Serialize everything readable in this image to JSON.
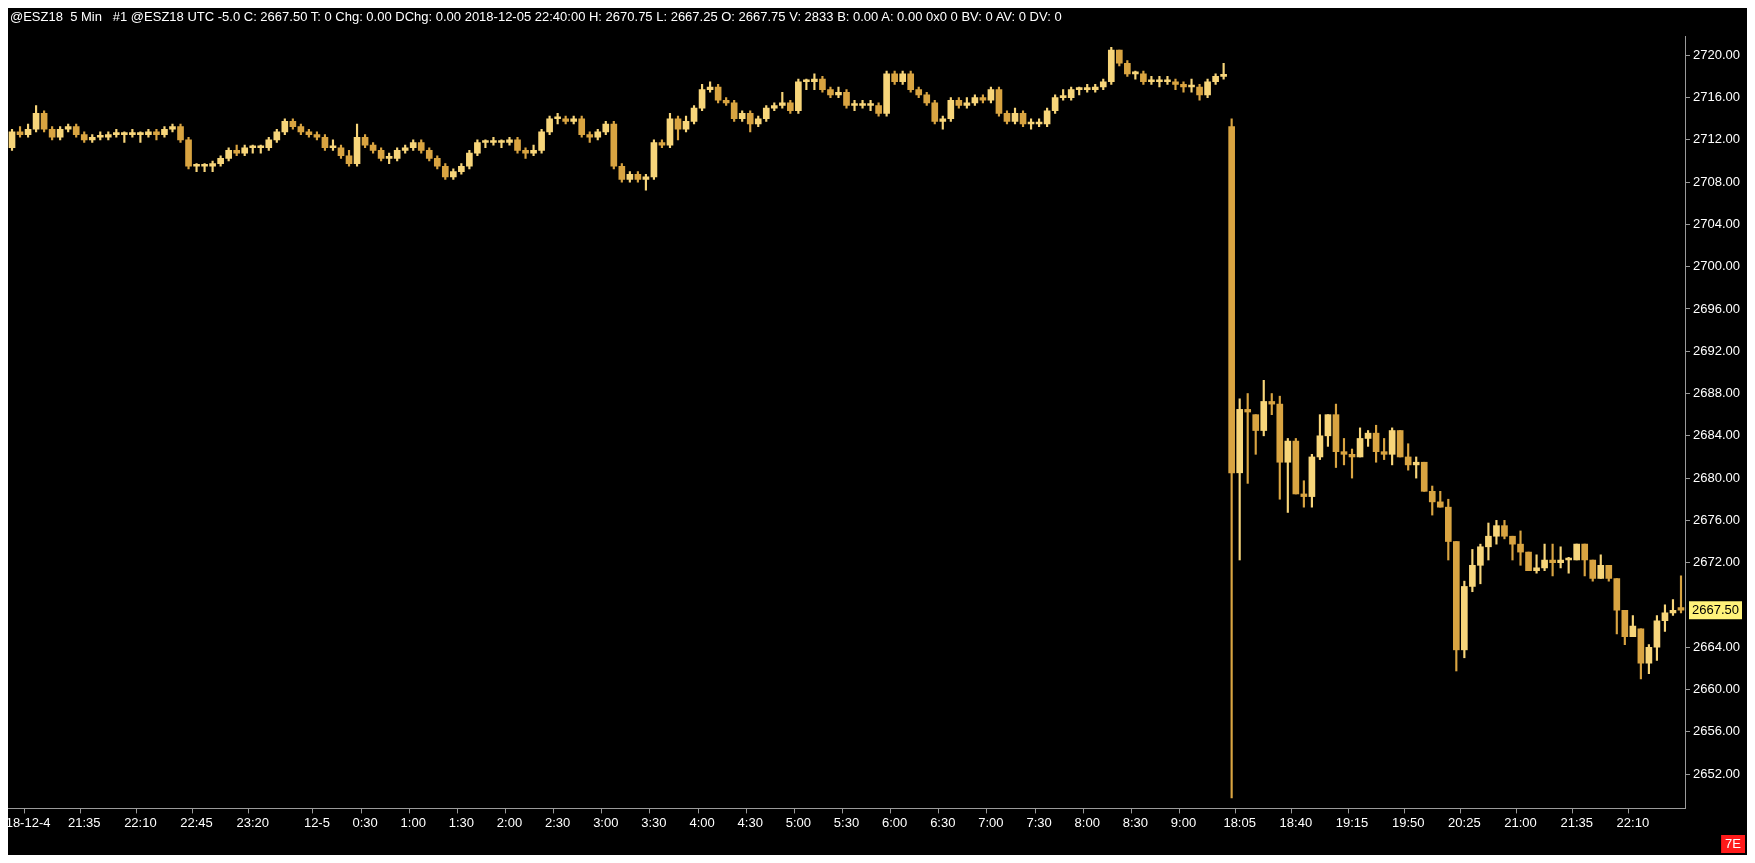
{
  "chart_data": {
    "type": "candlestick",
    "title": "@ESZ18  5 Min   #1 @ESZ18 UTC -5.0 C: 2667.50 T: 0 Chg: 0.00 DChg: 0.00 2018-12-05 22:40:00 H: 2670.75 L: 2667.25 O: 2667.75 V: 2833 B: 0.00 A: 0.00 0x0 0 BV: 0 AV: 0 DV: 0",
    "colors": [
      "#f7d57a",
      "#d9a441",
      "#f7d57a",
      "#f7d57a",
      "#d9a441",
      "#d9a441",
      "#f7d57a",
      "#f7d57a",
      "#d9a441",
      "#d9a441",
      "#f7d57a",
      "#f7d57a",
      "#f7d57a",
      "#f7d57a",
      "#f7d57a",
      "#f7d57a",
      "#f7d57a",
      "#f7d57a",
      "#d9a441",
      "#f7d57a",
      "#f7d57a",
      "#d9a441",
      "#d9a441",
      "#f7d57a",
      "#f7d57a",
      "#f7d57a",
      "#f7d57a",
      "#f7d57a",
      "#d9a441",
      "#f7d57a",
      "#f7d57a",
      "#f7d57a",
      "#f7d57a",
      "#f7d57a",
      "#f7d57a",
      "#d9a441",
      "#d9a441",
      "#d9a441",
      "#d9a441",
      "#d9a441",
      "#f7d57a",
      "#d9a441",
      "#d9a441",
      "#f7d57a",
      "#d9a441",
      "#d9a441",
      "#d9a441",
      "#f7d57a",
      "#f7d57a",
      "#f7d57a",
      "#f7d57a",
      "#d9a441",
      "#d9a441",
      "#d9a441",
      "#d9a441",
      "#f7d57a",
      "#f7d57a",
      "#f7d57a",
      "#f7d57a",
      "#f7d57a",
      "#f7d57a",
      "#f7d57a",
      "#f7d57a",
      "#d9a441",
      "#d9a441",
      "#f7d57a",
      "#f7d57a",
      "#f7d57a",
      "#f7d57a",
      "#d9a441",
      "#f7d57a",
      "#d9a441",
      "#d9a441",
      "#f7d57a",
      "#f7d57a",
      "#d9a441",
      "#d9a441",
      "#f7d57a",
      "#d9a441",
      "#f7d57a",
      "#f7d57a",
      "#d9a441",
      "#f7d57a",
      "#d9a441",
      "#f7d57a",
      "#f7d57a",
      "#f7d57a",
      "#f7d57a",
      "#d9a441",
      "#d9a441",
      "#d9a441",
      "#f7d57a",
      "#d9a441",
      "#f7d57a",
      "#f7d57a",
      "#f7d57a",
      "#f7d57a",
      "#d9a441",
      "#f7d57a",
      "#f7d57a",
      "#f7d57a",
      "#d9a441",
      "#d9a441",
      "#f7d57a",
      "#d9a441",
      "#f7d57a",
      "#f7d57a",
      "#f7d57a",
      "#d9a441",
      "#f7d57a",
      "#d9a441",
      "#f7d57a",
      "#d9a441",
      "#d9a441",
      "#d9a441",
      "#d9a441",
      "#f7d57a",
      "#f7d57a",
      "#d9a441",
      "#f7d57a",
      "#f7d57a",
      "#d9a441",
      "#f7d57a",
      "#d9a441",
      "#d9a441",
      "#f7d57a",
      "#d9a441",
      "#f7d57a",
      "#f7d57a",
      "#f7d57a",
      "#f7d57a",
      "#f7d57a",
      "#f7d57a",
      "#f7d57a",
      "#f7d57a",
      "#f7d57a",
      "#f7d57a",
      "#f7d57a",
      "#d9a441",
      "#d9a441",
      "#f7d57a",
      "#d9a441",
      "#f7d57a",
      "#f7d57a",
      "#f7d57a",
      "#d9a441",
      "#d9a441",
      "#f7d57a",
      "#d9a441",
      "#f7d57a",
      "#f7d57a",
      "#f7d57a",
      "#d9a441",
      "#f7d57a",
      "#d9a441",
      "#d9a441",
      "#f7d57a",
      "#d9a441",
      "#d9a441",
      "#f7d57a",
      "#d9a441",
      "#d9a441",
      "#f7d57a",
      "#f7d57a",
      "#f7d57a",
      "#d9a441",
      "#d9a441",
      "#d9a441",
      "#f7d57a",
      "#f7d57a",
      "#d9a441",
      "#d9a441",
      "#f7d57a",
      "#d9a441",
      "#d9a441",
      "#f7d57a",
      "#d9a441",
      "#d9a441",
      "#d9a441",
      "#d9a441",
      "#d9a441",
      "#f7d57a",
      "#f7d57a",
      "#f7d57a",
      "#f7d57a",
      "#f7d57a",
      "#d9a441",
      "#d9a441",
      "#d9a441",
      "#d9a441",
      "#f7d57a",
      "#f7d57a",
      "#d9a441",
      "#f7d57a",
      "#f7d57a",
      "#f7d57a",
      "#d9a441",
      "#d9a441",
      "#f7d57a",
      "#d9a441",
      "#d9a441",
      "#d9a441",
      "#f7d57a",
      "#d9a441",
      "#f7d57a",
      "#f7d57a",
      "#f7d57a",
      "#f7d57a",
      "#d9a441"
    ],
    "categories": [
      null,
      null,
      "18-12-4",
      null,
      null,
      null,
      null,
      null,
      null,
      "21:35",
      null,
      null,
      null,
      null,
      null,
      null,
      "22:10",
      null,
      null,
      null,
      null,
      null,
      null,
      "22:45",
      null,
      null,
      null,
      null,
      null,
      null,
      "23:20",
      null,
      null,
      null,
      null,
      null,
      null,
      null,
      "12-5",
      null,
      null,
      null,
      null,
      null,
      "0:30",
      null,
      null,
      null,
      null,
      null,
      "1:00",
      null,
      null,
      null,
      null,
      null,
      "1:30",
      null,
      null,
      null,
      null,
      null,
      "2:00",
      null,
      null,
      null,
      null,
      null,
      "2:30",
      null,
      null,
      null,
      null,
      null,
      "3:00",
      null,
      null,
      null,
      null,
      null,
      "3:30",
      null,
      null,
      null,
      null,
      null,
      "4:00",
      null,
      null,
      null,
      null,
      null,
      "4:30",
      null,
      null,
      null,
      null,
      null,
      "5:00",
      null,
      null,
      null,
      null,
      null,
      "5:30",
      null,
      null,
      null,
      null,
      null,
      "6:00",
      null,
      null,
      null,
      null,
      null,
      "6:30",
      null,
      null,
      null,
      null,
      null,
      "7:00",
      null,
      null,
      null,
      null,
      null,
      "7:30",
      null,
      null,
      null,
      null,
      null,
      "8:00",
      null,
      null,
      null,
      null,
      null,
      "8:30",
      null,
      null,
      null,
      null,
      null,
      "9:00",
      null,
      null,
      null,
      null,
      null,
      null,
      "18:05",
      null,
      null,
      null,
      null,
      null,
      null,
      "18:40",
      null,
      null,
      null,
      null,
      null,
      null,
      "19:15",
      null,
      null,
      null,
      null,
      null,
      null,
      "19:50",
      null,
      null,
      null,
      null,
      null,
      null,
      "20:25",
      null,
      null,
      null,
      null,
      null,
      null,
      "21:00",
      null,
      null,
      null,
      null,
      null,
      null,
      "21:35",
      null,
      null,
      null,
      null,
      null,
      null,
      "22:10",
      null,
      null,
      null,
      null,
      null,
      null
    ],
    "ohlc": [
      [
        2711.25,
        2713,
        2711,
        2712.75
      ],
      [
        2712.75,
        2713.25,
        2712.25,
        2712.5
      ],
      [
        2712.5,
        2713.5,
        2712.25,
        2713
      ],
      [
        2713,
        2715.25,
        2712.75,
        2714.5
      ],
      [
        2714.5,
        2714.75,
        2712.75,
        2713
      ],
      [
        2713,
        2713.25,
        2712,
        2712.25
      ],
      [
        2712.25,
        2713.25,
        2712,
        2713
      ],
      [
        2713,
        2713.5,
        2712.75,
        2713.25
      ],
      [
        2713.25,
        2713.5,
        2712.25,
        2712.5
      ],
      [
        2712.5,
        2712.75,
        2711.75,
        2712
      ],
      [
        2712,
        2712.5,
        2711.75,
        2712.25
      ],
      [
        2712.25,
        2712.75,
        2712,
        2712.25
      ],
      [
        2712.25,
        2712.75,
        2712,
        2712.5
      ],
      [
        2712.5,
        2713,
        2712.25,
        2712.5
      ],
      [
        2712.5,
        2712.75,
        2711.75,
        2712.5
      ],
      [
        2712.5,
        2713,
        2712.25,
        2712.5
      ],
      [
        2712.5,
        2712.75,
        2711.75,
        2712.5
      ],
      [
        2712.5,
        2713,
        2712.25,
        2712.75
      ],
      [
        2712.75,
        2713,
        2712,
        2712.5
      ],
      [
        2712.5,
        2713.25,
        2712.25,
        2713
      ],
      [
        2713,
        2713.5,
        2712.75,
        2713.25
      ],
      [
        2713.25,
        2713.5,
        2711.75,
        2712
      ],
      [
        2712,
        2712.25,
        2709.25,
        2709.5
      ],
      [
        2709.5,
        2709.75,
        2709,
        2709.5
      ],
      [
        2709.5,
        2709.75,
        2709,
        2709.5
      ],
      [
        2709.5,
        2710,
        2709,
        2709.75
      ],
      [
        2709.75,
        2710.5,
        2709.5,
        2710.25
      ],
      [
        2710.25,
        2711.25,
        2710,
        2711
      ],
      [
        2711,
        2711.5,
        2710.5,
        2710.75
      ],
      [
        2710.75,
        2711.5,
        2710.5,
        2711.25
      ],
      [
        2711.25,
        2711.5,
        2710.75,
        2711.25
      ],
      [
        2711.25,
        2711.5,
        2710.75,
        2711.25
      ],
      [
        2711.25,
        2712.25,
        2711,
        2712
      ],
      [
        2712,
        2713,
        2711.75,
        2712.75
      ],
      [
        2712.75,
        2714,
        2712.5,
        2713.75
      ],
      [
        2713.75,
        2714,
        2713,
        2713.25
      ],
      [
        2713.25,
        2713.5,
        2712.5,
        2712.75
      ],
      [
        2712.75,
        2713,
        2712.25,
        2712.5
      ],
      [
        2712.5,
        2712.75,
        2712,
        2712.25
      ],
      [
        2712.25,
        2712.5,
        2711,
        2711.25
      ],
      [
        2711.25,
        2712,
        2711,
        2711.25
      ],
      [
        2711.25,
        2711.5,
        2710.25,
        2710.5
      ],
      [
        2710.5,
        2711,
        2709.5,
        2709.75
      ],
      [
        2709.75,
        2713.5,
        2709.5,
        2712.25
      ],
      [
        2712.25,
        2712.5,
        2711.25,
        2711.5
      ],
      [
        2711.5,
        2711.75,
        2710.75,
        2711
      ],
      [
        2711,
        2711.25,
        2710,
        2710.25
      ],
      [
        2710.25,
        2710.75,
        2709.75,
        2710.25
      ],
      [
        2710.25,
        2711.25,
        2710,
        2711
      ],
      [
        2711,
        2711.5,
        2710.75,
        2711.25
      ],
      [
        2711.25,
        2712,
        2711,
        2711.75
      ],
      [
        2711.75,
        2712,
        2710.75,
        2711
      ],
      [
        2711,
        2711.25,
        2710,
        2710.25
      ],
      [
        2710.25,
        2710.5,
        2709.25,
        2709.5
      ],
      [
        2709.5,
        2709.75,
        2708.25,
        2708.5
      ],
      [
        2708.5,
        2709.25,
        2708.25,
        2709
      ],
      [
        2709,
        2709.75,
        2708.75,
        2709.5
      ],
      [
        2709.5,
        2711,
        2709.25,
        2710.75
      ],
      [
        2710.75,
        2712,
        2710.5,
        2711.75
      ],
      [
        2711.75,
        2712,
        2711.25,
        2711.75
      ],
      [
        2711.75,
        2712.25,
        2711.5,
        2711.75
      ],
      [
        2711.75,
        2712,
        2711.25,
        2711.75
      ],
      [
        2711.75,
        2712.25,
        2711.5,
        2712
      ],
      [
        2712,
        2712.25,
        2710.75,
        2711
      ],
      [
        2711,
        2711.25,
        2710.25,
        2710.75
      ],
      [
        2710.75,
        2711.5,
        2710.5,
        2711
      ],
      [
        2711,
        2713,
        2710.75,
        2712.75
      ],
      [
        2712.75,
        2714.25,
        2712.5,
        2714
      ],
      [
        2714,
        2714.5,
        2713.5,
        2714
      ],
      [
        2714,
        2714.25,
        2713.5,
        2713.75
      ],
      [
        2713.75,
        2714.25,
        2713.5,
        2714
      ],
      [
        2714,
        2714.25,
        2712.25,
        2712.5
      ],
      [
        2712.5,
        2712.75,
        2711.75,
        2712.25
      ],
      [
        2712.25,
        2713,
        2712,
        2712.75
      ],
      [
        2712.75,
        2713.75,
        2712.5,
        2713.5
      ],
      [
        2713.5,
        2713.75,
        2709.25,
        2709.5
      ],
      [
        2709.5,
        2709.75,
        2708,
        2708.25
      ],
      [
        2708.25,
        2709,
        2708,
        2708.75
      ],
      [
        2708.75,
        2709,
        2708,
        2708.25
      ],
      [
        2708.25,
        2708.75,
        2707.25,
        2708.5
      ],
      [
        2708.5,
        2712,
        2708.25,
        2711.75
      ],
      [
        2711.75,
        2712,
        2711.25,
        2711.5
      ],
      [
        2711.5,
        2714.5,
        2711.25,
        2714
      ],
      [
        2714,
        2714.25,
        2712,
        2713
      ],
      [
        2713,
        2714.25,
        2712.75,
        2713.75
      ],
      [
        2713.75,
        2715.25,
        2713.5,
        2715
      ],
      [
        2715,
        2717.25,
        2714.75,
        2716.75
      ],
      [
        2716.75,
        2717.5,
        2716.5,
        2717
      ],
      [
        2717,
        2717.25,
        2715.5,
        2715.75
      ],
      [
        2715.75,
        2716,
        2715.25,
        2715.5
      ],
      [
        2715.5,
        2715.75,
        2713.75,
        2714
      ],
      [
        2714,
        2714.75,
        2713.75,
        2714.5
      ],
      [
        2714.5,
        2714.75,
        2712.75,
        2713.5
      ],
      [
        2713.5,
        2714.25,
        2713.25,
        2714
      ],
      [
        2714,
        2715.25,
        2713.75,
        2715
      ],
      [
        2715,
        2715.5,
        2714.75,
        2715.25
      ],
      [
        2715.25,
        2716.5,
        2715,
        2715.5
      ],
      [
        2715.5,
        2715.75,
        2714.5,
        2714.75
      ],
      [
        2714.75,
        2717.75,
        2714.5,
        2717.5
      ],
      [
        2717.5,
        2717.75,
        2716.75,
        2717.5
      ],
      [
        2717.5,
        2718.25,
        2716.75,
        2717.75
      ],
      [
        2717.75,
        2718,
        2716.5,
        2716.75
      ],
      [
        2716.75,
        2717,
        2716,
        2716.25
      ],
      [
        2716.25,
        2717,
        2716,
        2716.5
      ],
      [
        2716.5,
        2716.75,
        2715,
        2715.25
      ],
      [
        2715.25,
        2715.75,
        2714.75,
        2715.25
      ],
      [
        2715.25,
        2715.75,
        2715,
        2715.25
      ],
      [
        2715.25,
        2715.75,
        2714.75,
        2715.25
      ],
      [
        2715.25,
        2715.5,
        2714.25,
        2714.5
      ],
      [
        2714.5,
        2718.5,
        2714.25,
        2718.25
      ],
      [
        2718.25,
        2718.5,
        2717.25,
        2717.5
      ],
      [
        2717.5,
        2718.5,
        2717.25,
        2718.25
      ],
      [
        2718.25,
        2718.5,
        2716.5,
        2716.75
      ],
      [
        2716.75,
        2717,
        2716,
        2716.25
      ],
      [
        2716.25,
        2716.5,
        2715.25,
        2715.5
      ],
      [
        2715.5,
        2715.75,
        2713.5,
        2713.75
      ],
      [
        2713.75,
        2714.25,
        2713,
        2714
      ],
      [
        2714,
        2716,
        2713.75,
        2715.75
      ],
      [
        2715.75,
        2716,
        2715,
        2715.25
      ],
      [
        2715.25,
        2716,
        2715,
        2715.5
      ],
      [
        2715.5,
        2716.25,
        2715.25,
        2716
      ],
      [
        2716,
        2716.25,
        2715.5,
        2715.75
      ],
      [
        2715.75,
        2717,
        2715.5,
        2716.75
      ],
      [
        2716.75,
        2717,
        2714.25,
        2714.5
      ],
      [
        2714.5,
        2714.75,
        2713.5,
        2713.75
      ],
      [
        2713.75,
        2715,
        2713.5,
        2714.5
      ],
      [
        2714.5,
        2714.75,
        2713.25,
        2713.5
      ],
      [
        2713.5,
        2714,
        2713,
        2713.5
      ],
      [
        2713.5,
        2714,
        2713.25,
        2713.5
      ],
      [
        2713.5,
        2715,
        2713.25,
        2714.75
      ],
      [
        2714.75,
        2716.25,
        2714.5,
        2716
      ],
      [
        2716,
        2716.75,
        2715.75,
        2716
      ],
      [
        2716,
        2717,
        2715.75,
        2716.75
      ],
      [
        2716.75,
        2717,
        2716.25,
        2716.75
      ],
      [
        2716.75,
        2717.25,
        2716.5,
        2716.75
      ],
      [
        2716.75,
        2717.25,
        2716.5,
        2717
      ],
      [
        2717,
        2717.75,
        2716.75,
        2717.5
      ],
      [
        2717.5,
        2720.75,
        2717.25,
        2720.5
      ],
      [
        2720.5,
        2720.5,
        2719,
        2719.25
      ],
      [
        2719.25,
        2719.5,
        2718,
        2718.25
      ],
      [
        2718.25,
        2718.5,
        2717.75,
        2718.25
      ],
      [
        2718.25,
        2718.5,
        2717.25,
        2717.5
      ],
      [
        2717.5,
        2718,
        2717.25,
        2717.5
      ],
      [
        2717.5,
        2718,
        2717,
        2717.5
      ],
      [
        2717.5,
        2718,
        2717.25,
        2717.5
      ],
      [
        2717.5,
        2717.75,
        2716.75,
        2717.25
      ],
      [
        2717.25,
        2717.5,
        2716.5,
        2717
      ],
      [
        2717,
        2717.75,
        2716.5,
        2717
      ],
      [
        2717,
        2717.25,
        2715.75,
        2716.25
      ],
      [
        2716.25,
        2717.75,
        2716,
        2717.5
      ],
      [
        2717.5,
        2718.25,
        2717.25,
        2718
      ],
      [
        2718,
        2719.25,
        2717.75,
        2718
      ],
      [
        2713.25,
        2714,
        2649.75,
        2680.5
      ],
      [
        2680.5,
        2687.5,
        2672.25,
        2686.5
      ],
      [
        2686.5,
        2688,
        2679.5,
        2686.25
      ],
      [
        2686,
        2686,
        2682.25,
        2684.5
      ],
      [
        2684.5,
        2689.25,
        2684,
        2687.25
      ],
      [
        2687.25,
        2688,
        2686,
        2687
      ],
      [
        2687,
        2687.75,
        2678,
        2681.5
      ],
      [
        2681.5,
        2683.75,
        2676.75,
        2683.5
      ],
      [
        2683.5,
        2683.75,
        2678.5,
        2678.5
      ],
      [
        2678.5,
        2679.75,
        2677.25,
        2678.25
      ],
      [
        2678.25,
        2682.25,
        2677.25,
        2682
      ],
      [
        2682,
        2686,
        2681.75,
        2684
      ],
      [
        2684,
        2686,
        2683,
        2686
      ],
      [
        2686,
        2687,
        2681,
        2682.5
      ],
      [
        2682.5,
        2683.75,
        2681.25,
        2682.25
      ],
      [
        2682.25,
        2682.75,
        2680,
        2682
      ],
      [
        2682,
        2684.75,
        2682,
        2683.75
      ],
      [
        2683.75,
        2684.5,
        2683,
        2684.25
      ],
      [
        2684.25,
        2685,
        2681.5,
        2682.5
      ],
      [
        2682.5,
        2683.75,
        2681.75,
        2682.25
      ],
      [
        2682.25,
        2684.75,
        2681.25,
        2684.5
      ],
      [
        2684.5,
        2684.5,
        2682,
        2682
      ],
      [
        2682,
        2683.25,
        2680.75,
        2681.25
      ],
      [
        2681.25,
        2682,
        2680,
        2681.5
      ],
      [
        2681.5,
        2681.5,
        2678.75,
        2678.75
      ],
      [
        2678.75,
        2679.25,
        2676.5,
        2677.75
      ],
      [
        2677.75,
        2678.75,
        2677.25,
        2677.25
      ],
      [
        2677.25,
        2678,
        2672.25,
        2674
      ],
      [
        2674,
        2674,
        2661.75,
        2663.75
      ],
      [
        2663.75,
        2670.25,
        2663,
        2669.75
      ],
      [
        2669.75,
        2673.25,
        2669.25,
        2671.75
      ],
      [
        2671.75,
        2673.75,
        2670,
        2673.5
      ],
      [
        2673.5,
        2675.75,
        2672.25,
        2674.5
      ],
      [
        2674.5,
        2676,
        2673.75,
        2675.5
      ],
      [
        2675.5,
        2676,
        2674.25,
        2674.5
      ],
      [
        2674.5,
        2674.5,
        2672.25,
        2673.75
      ],
      [
        2673.75,
        2675,
        2671.75,
        2673
      ],
      [
        2673,
        2673,
        2671.25,
        2671.25
      ],
      [
        2671.25,
        2672.75,
        2671,
        2671.5
      ],
      [
        2671.5,
        2673.75,
        2671.25,
        2672.25
      ],
      [
        2672.25,
        2673.75,
        2670.75,
        2672
      ],
      [
        2672,
        2673.5,
        2671.5,
        2672.25
      ],
      [
        2672.25,
        2672.5,
        2671,
        2672.25
      ],
      [
        2672.25,
        2673.75,
        2672.25,
        2673.75
      ],
      [
        2673.75,
        2673.75,
        2670.75,
        2672.25
      ],
      [
        2672.25,
        2672.25,
        2670.25,
        2670.5
      ],
      [
        2670.5,
        2672.75,
        2670.5,
        2671.75
      ],
      [
        2671.75,
        2671.75,
        2670.25,
        2670.5
      ],
      [
        2670.5,
        2670.5,
        2665.25,
        2667.5
      ],
      [
        2667.5,
        2667.5,
        2664.25,
        2665
      ],
      [
        2665,
        2667,
        2665,
        2666
      ],
      [
        2665.75,
        2665.75,
        2661,
        2662.5
      ],
      [
        2662.5,
        2664.25,
        2661.5,
        2664
      ],
      [
        2664,
        2667,
        2662.75,
        2666.5
      ],
      [
        2666.5,
        2668,
        2665.5,
        2667.25
      ],
      [
        2667.25,
        2668.5,
        2667,
        2667.5
      ],
      [
        2667.75,
        2670.75,
        2667.25,
        2667.5
      ]
    ],
    "ylim": [
      2648.75,
      2721.75
    ],
    "yticks": [
      {
        "value": 2652,
        "label": "2652.00"
      },
      {
        "value": 2656,
        "label": "2656.00"
      },
      {
        "value": 2660,
        "label": "2660.00"
      },
      {
        "value": 2664,
        "label": "2664.00"
      },
      {
        "value": 2672,
        "label": "2672.00"
      },
      {
        "value": 2676,
        "label": "2676.00"
      },
      {
        "value": 2680,
        "label": "2680.00"
      },
      {
        "value": 2684,
        "label": "2684.00"
      },
      {
        "value": 2688,
        "label": "2688.00"
      },
      {
        "value": 2692,
        "label": "2692.00"
      },
      {
        "value": 2696,
        "label": "2696.00"
      },
      {
        "value": 2700,
        "label": "2700.00"
      },
      {
        "value": 2704,
        "label": "2704.00"
      },
      {
        "value": 2708,
        "label": "2708.00"
      },
      {
        "value": 2712,
        "label": "2712.00"
      },
      {
        "value": 2716,
        "label": "2716.00"
      },
      {
        "value": 2720,
        "label": "2720.00"
      }
    ],
    "annotations": [
      "2667.50",
      "7E"
    ]
  }
}
